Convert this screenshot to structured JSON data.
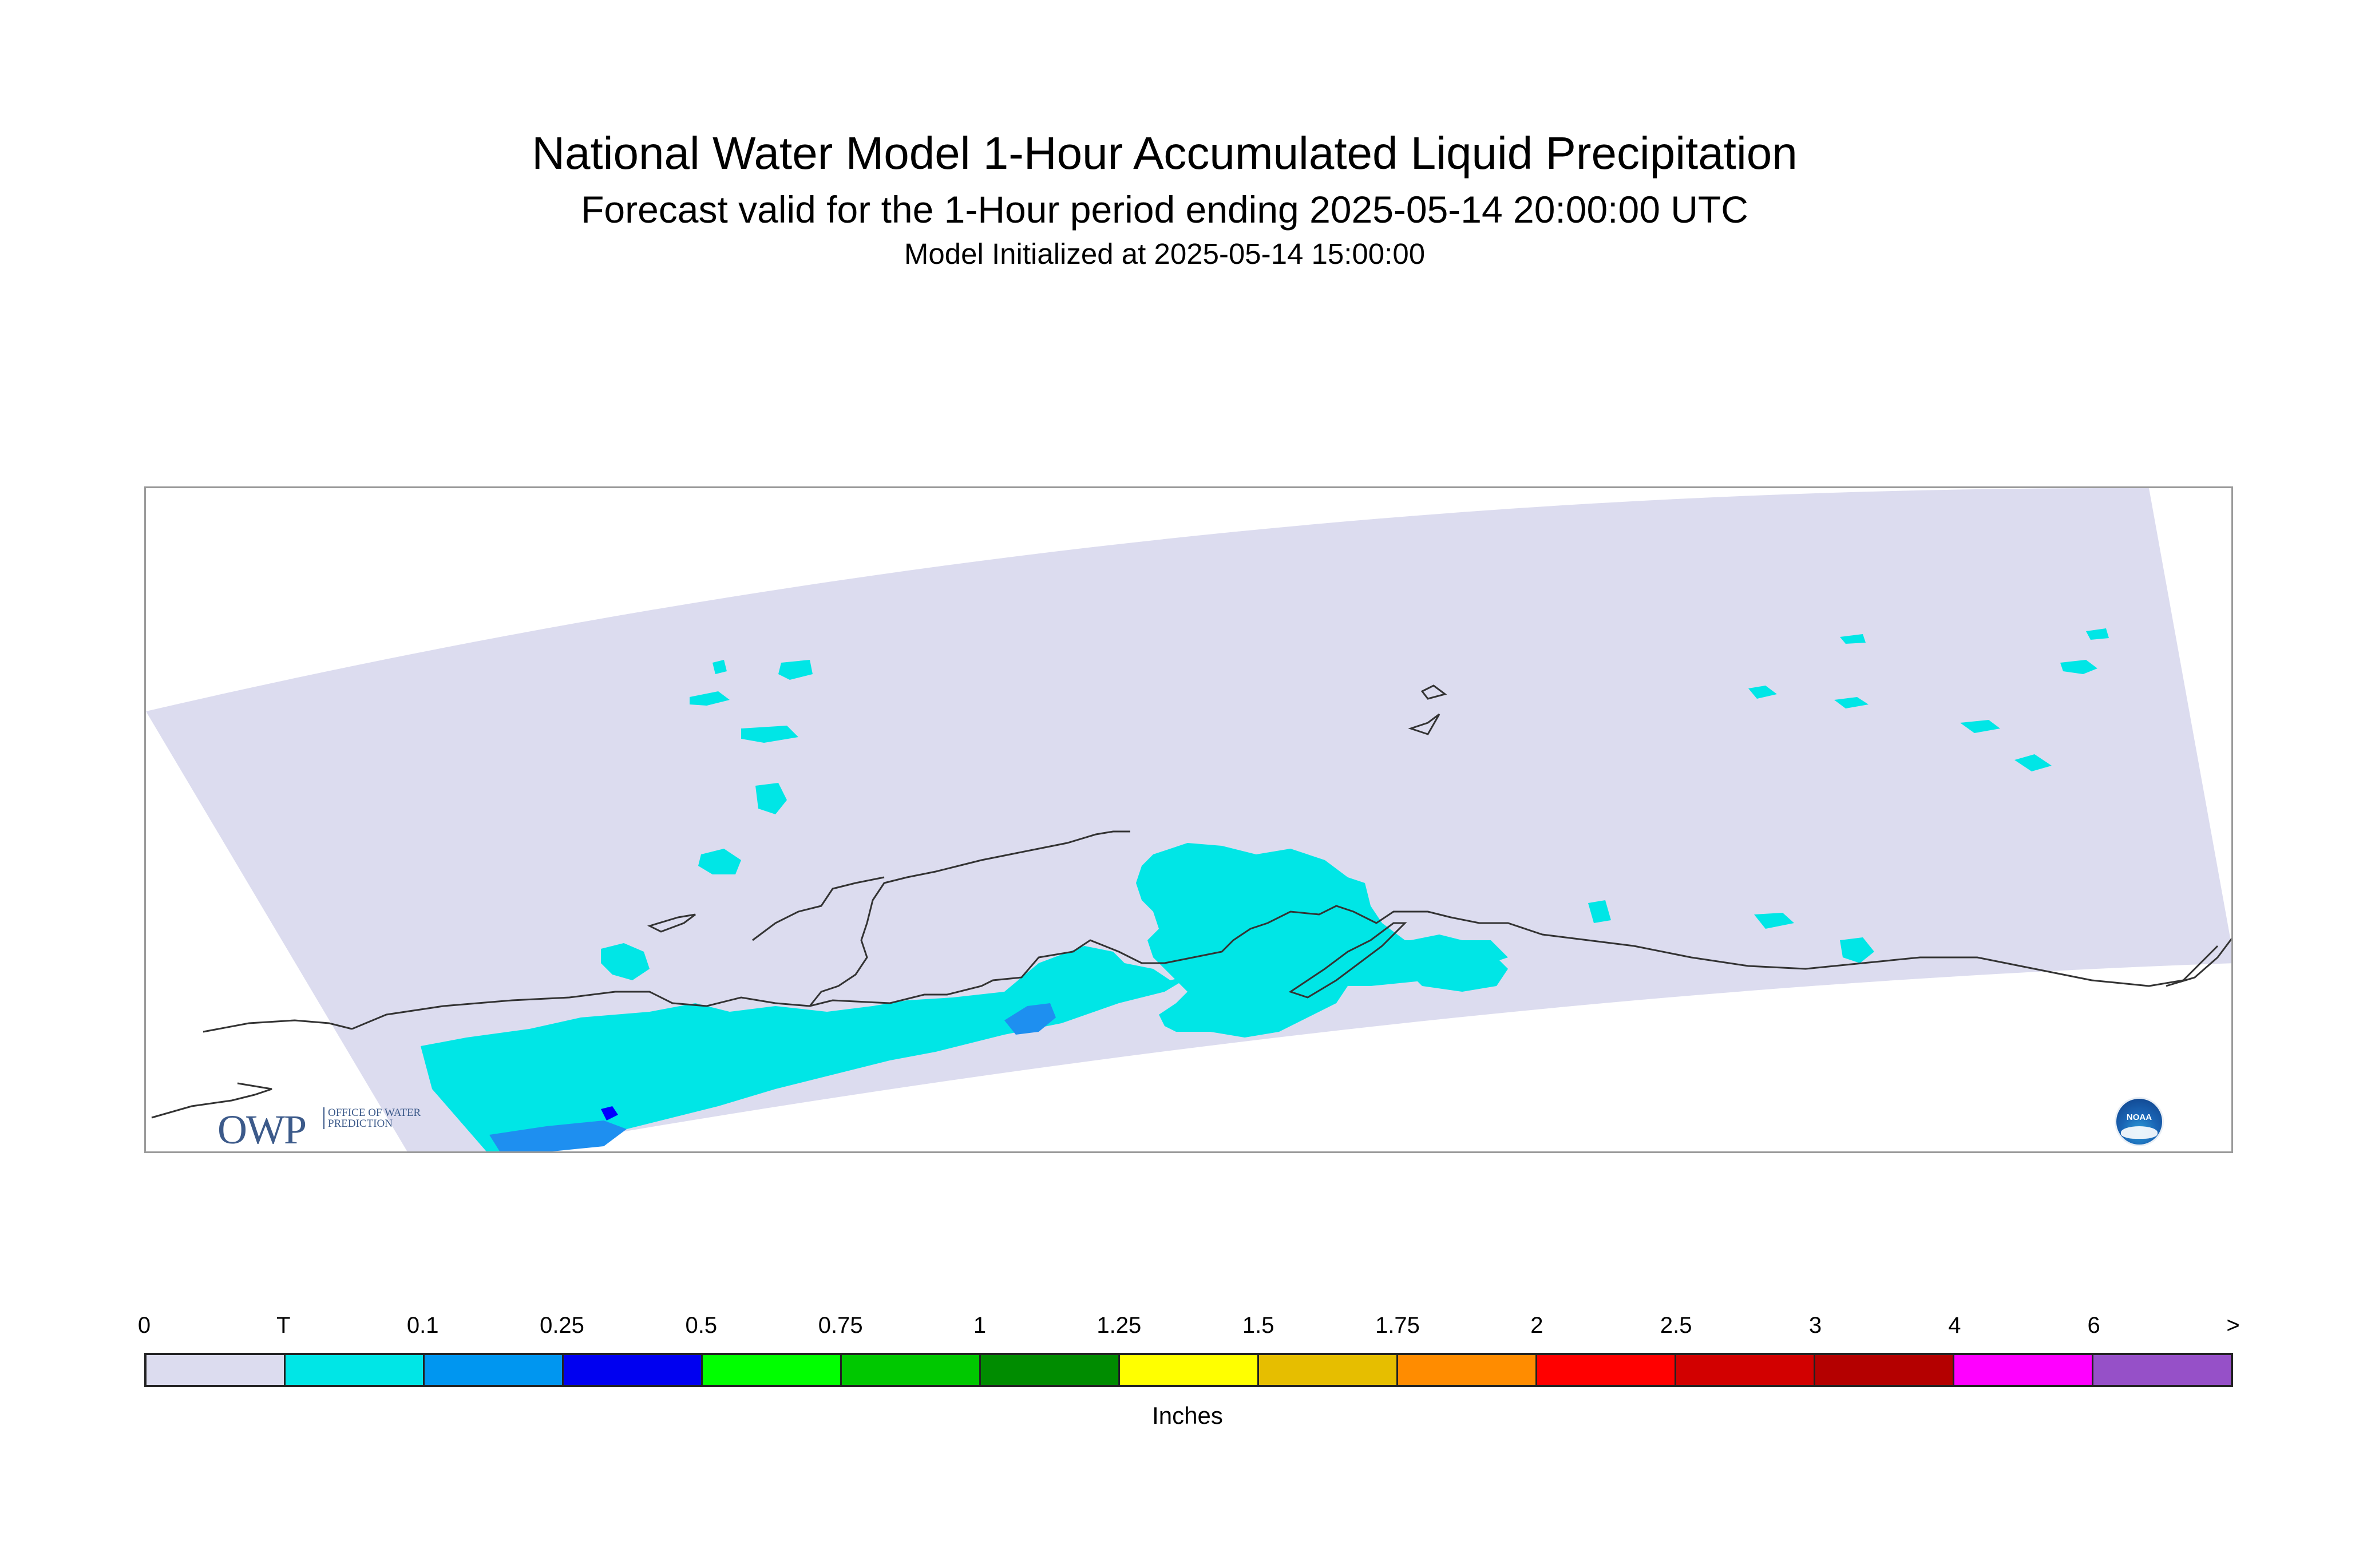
{
  "header": {
    "title": "National Water Model 1-Hour Accumulated Liquid Precipitation",
    "subtitle": "Forecast valid for the 1-Hour period ending 2025-05-14 20:00:00 UTC",
    "init": "Model Initialized at 2025-05-14 15:00:00"
  },
  "map": {
    "domain_color": "#dcdcef",
    "precip_color_trace": "#00e6e6",
    "precip_color_mid": "#1e8ff0",
    "precip_color_high": "#0000ff",
    "coastline_color": "#333333"
  },
  "logos": {
    "owp_text": "OWP",
    "owp_sub": "OFFICE OF WATER PREDICTION",
    "noaa_text": "NOAA",
    "noaa_icon": "noaa-logo-icon"
  },
  "legend": {
    "labels": [
      "0",
      "T",
      "0.1",
      "0.25",
      "0.5",
      "0.75",
      "1",
      "1.25",
      "1.5",
      "1.75",
      "2",
      "2.5",
      "3",
      "4",
      "6",
      ">"
    ],
    "colors": [
      "#dcdcef",
      "#00e6e6",
      "#0096f0",
      "#0000f0",
      "#00ff00",
      "#00c800",
      "#008c00",
      "#ffff00",
      "#e6be00",
      "#ff8c00",
      "#ff0000",
      "#d20000",
      "#b40000",
      "#ff00ff",
      "#9650c8"
    ],
    "units": "Inches"
  }
}
